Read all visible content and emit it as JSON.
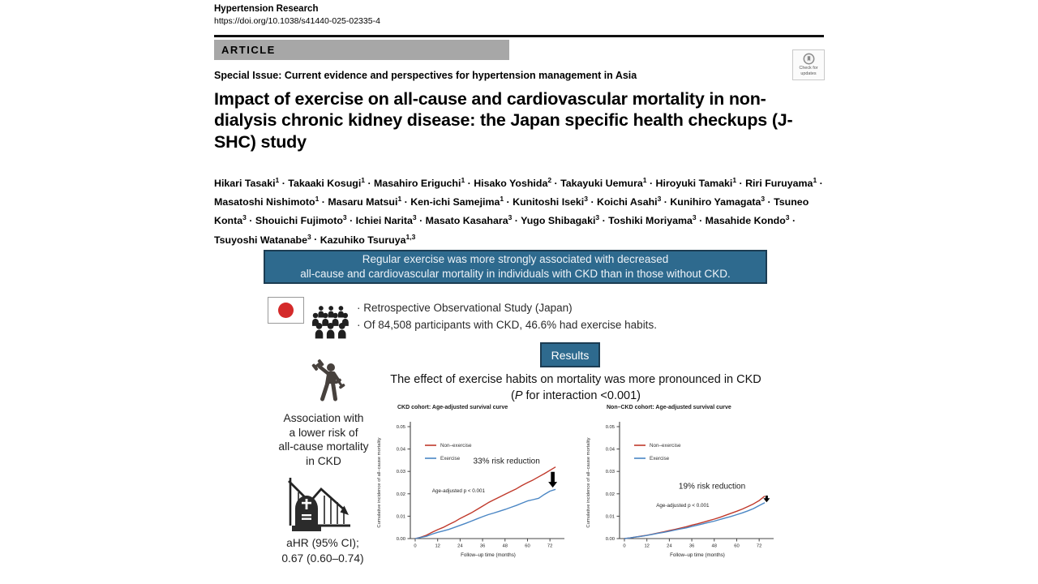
{
  "journal": {
    "name": "Hypertension Research",
    "doi": "https://doi.org/10.1038/s41440-025-02335-4"
  },
  "article_type": "ARTICLE",
  "check_updates": {
    "line1": "Check for",
    "line2": "updates"
  },
  "special_issue": "Special Issue: Current evidence and perspectives for hypertension management in Asia",
  "title": "Impact of exercise on all-cause and cardiovascular mortality in non-dialysis chronic kidney disease: the Japan specific health checkups (J-SHC) study",
  "authors": [
    {
      "name": "Hikari Tasaki",
      "sup": "1"
    },
    {
      "name": "Takaaki Kosugi",
      "sup": "1"
    },
    {
      "name": "Masahiro Eriguchi",
      "sup": "1"
    },
    {
      "name": "Hisako Yoshida",
      "sup": "2"
    },
    {
      "name": "Takayuki Uemura",
      "sup": "1"
    },
    {
      "name": "Hiroyuki Tamaki",
      "sup": "1"
    },
    {
      "name": "Riri Furuyama",
      "sup": "1"
    },
    {
      "name": "Masatoshi Nishimoto",
      "sup": "1"
    },
    {
      "name": "Masaru Matsui",
      "sup": "1"
    },
    {
      "name": "Ken-ichi Samejima",
      "sup": "1"
    },
    {
      "name": "Kunitoshi Iseki",
      "sup": "3"
    },
    {
      "name": "Koichi Asahi",
      "sup": "3"
    },
    {
      "name": "Kunihiro Yamagata",
      "sup": "3"
    },
    {
      "name": "Tsuneo Konta",
      "sup": "3"
    },
    {
      "name": "Shouichi Fujimoto",
      "sup": "3"
    },
    {
      "name": "Ichiei Narita",
      "sup": "3"
    },
    {
      "name": "Masato Kasahara",
      "sup": "3"
    },
    {
      "name": "Yugo Shibagaki",
      "sup": "3"
    },
    {
      "name": "Toshiki Moriyama",
      "sup": "3"
    },
    {
      "name": "Masahide Kondo",
      "sup": "3"
    },
    {
      "name": "Tsuyoshi Watanabe",
      "sup": "3"
    },
    {
      "name": "Kazuhiko Tsuruya",
      "sup": "1,3"
    }
  ],
  "author_separator": "·",
  "graphical_abstract": {
    "banner_line1": "Regular exercise was more strongly associated with decreased",
    "banner_line2": "all-cause and cardiovascular mortality in individuals with CKD than in those without CKD.",
    "bullet_char": "·",
    "bullets": [
      "Retrospective Observational Study (Japan)",
      "Of 84,508 participants with CKD, 46.6% had exercise habits."
    ],
    "results_label": "Results",
    "effect_line1": "The effect of exercise habits on mortality was more pronounced in CKD",
    "p_open": "(",
    "p_italic": "P",
    "p_rest": " for interaction <0.001)",
    "association": [
      "Association with",
      "a lower risk of",
      "all-cause mortality",
      "in CKD"
    ],
    "ahr_line1": "aHR (95% CI);",
    "ahr_line2": "0.67 (0.60–0.74)"
  },
  "colors": {
    "banner_blue": "#2e6a8e",
    "banner_border": "#1c3c52",
    "article_bar_gray": "#a7a7a7",
    "flag_red": "#d42a2a",
    "nonexercise_red": "#c0392b",
    "exercise_blue": "#4a86c4"
  },
  "chart_data": [
    {
      "type": "line",
      "title": "CKD cohort: Age-adjusted survival curve",
      "xlabel": "Follow–up time (months)",
      "ylabel": "Cumulative incidence of all–cause mortality",
      "xlim": [
        0,
        78
      ],
      "xticks": [
        0,
        12,
        24,
        36,
        48,
        60,
        72
      ],
      "yticks": [
        0.0,
        0.01,
        0.02,
        0.03,
        0.04,
        0.05
      ],
      "x": [
        0,
        3,
        6,
        9,
        12,
        15,
        18,
        21,
        24,
        27,
        30,
        33,
        36,
        39,
        42,
        45,
        48,
        51,
        54,
        57,
        60,
        63,
        66,
        69,
        72,
        75
      ],
      "series": [
        {
          "name": "Non–exercise",
          "color": "#c0392b",
          "y": [
            0.0,
            0.0006,
            0.0015,
            0.0028,
            0.004,
            0.005,
            0.0063,
            0.0075,
            0.009,
            0.0102,
            0.0115,
            0.013,
            0.0145,
            0.016,
            0.0173,
            0.0185,
            0.0198,
            0.021,
            0.0222,
            0.0237,
            0.025,
            0.0262,
            0.0276,
            0.029,
            0.0305,
            0.032
          ]
        },
        {
          "name": "Exercise",
          "color": "#4a86c4",
          "y": [
            0.0,
            0.0005,
            0.001,
            0.002,
            0.0028,
            0.0034,
            0.0041,
            0.005,
            0.0059,
            0.0068,
            0.0078,
            0.0088,
            0.0098,
            0.0107,
            0.0114,
            0.0122,
            0.013,
            0.0139,
            0.0148,
            0.0158,
            0.0168,
            0.0174,
            0.018,
            0.0197,
            0.0212,
            0.022
          ]
        }
      ],
      "p_label": "Age-adjusted p < 0.001",
      "p_label_pos": [
        9,
        0.0207
      ],
      "annotation": "33% risk reduction",
      "annotation_pos": [
        31,
        0.0335
      ],
      "arrow": {
        "x": 73.5,
        "y_from": 0.0298,
        "y_to": 0.0228,
        "size": "large"
      }
    },
    {
      "type": "line",
      "title": "Non–CKD cohort: Age-adjusted survival curve",
      "xlabel": "Follow–up time (months)",
      "ylabel": "Cumulative incidence of all–cause mortality",
      "xlim": [
        0,
        78
      ],
      "xticks": [
        0,
        12,
        24,
        36,
        48,
        60,
        72
      ],
      "yticks": [
        0.0,
        0.01,
        0.02,
        0.03,
        0.04,
        0.05
      ],
      "x": [
        0,
        3,
        6,
        9,
        12,
        15,
        18,
        21,
        24,
        27,
        30,
        33,
        36,
        39,
        42,
        45,
        48,
        51,
        54,
        57,
        60,
        63,
        66,
        69,
        72,
        75
      ],
      "series": [
        {
          "name": "Non–exercise",
          "color": "#c0392b",
          "y": [
            0.0,
            0.0003,
            0.0007,
            0.0011,
            0.0015,
            0.002,
            0.0025,
            0.003,
            0.0036,
            0.0041,
            0.0047,
            0.0053,
            0.006,
            0.0066,
            0.0073,
            0.008,
            0.0087,
            0.0095,
            0.0104,
            0.0113,
            0.0122,
            0.0132,
            0.0143,
            0.0155,
            0.017,
            0.019
          ]
        },
        {
          "name": "Exercise",
          "color": "#4a86c4",
          "y": [
            0.0,
            0.0003,
            0.0007,
            0.001,
            0.0014,
            0.0019,
            0.0024,
            0.0028,
            0.0033,
            0.0038,
            0.0043,
            0.0048,
            0.0054,
            0.006,
            0.0066,
            0.0072,
            0.0078,
            0.0085,
            0.0092,
            0.0099,
            0.0107,
            0.0115,
            0.0124,
            0.0134,
            0.0148,
            0.016
          ]
        }
      ],
      "p_label": "Age-adjusted p < 0.001",
      "p_label_pos": [
        17,
        0.0142
      ],
      "annotation": "19% risk reduction",
      "annotation_pos": [
        29,
        0.0222
      ],
      "arrow": {
        "x": 76,
        "y_from": 0.0192,
        "y_to": 0.0162,
        "size": "small"
      }
    }
  ]
}
